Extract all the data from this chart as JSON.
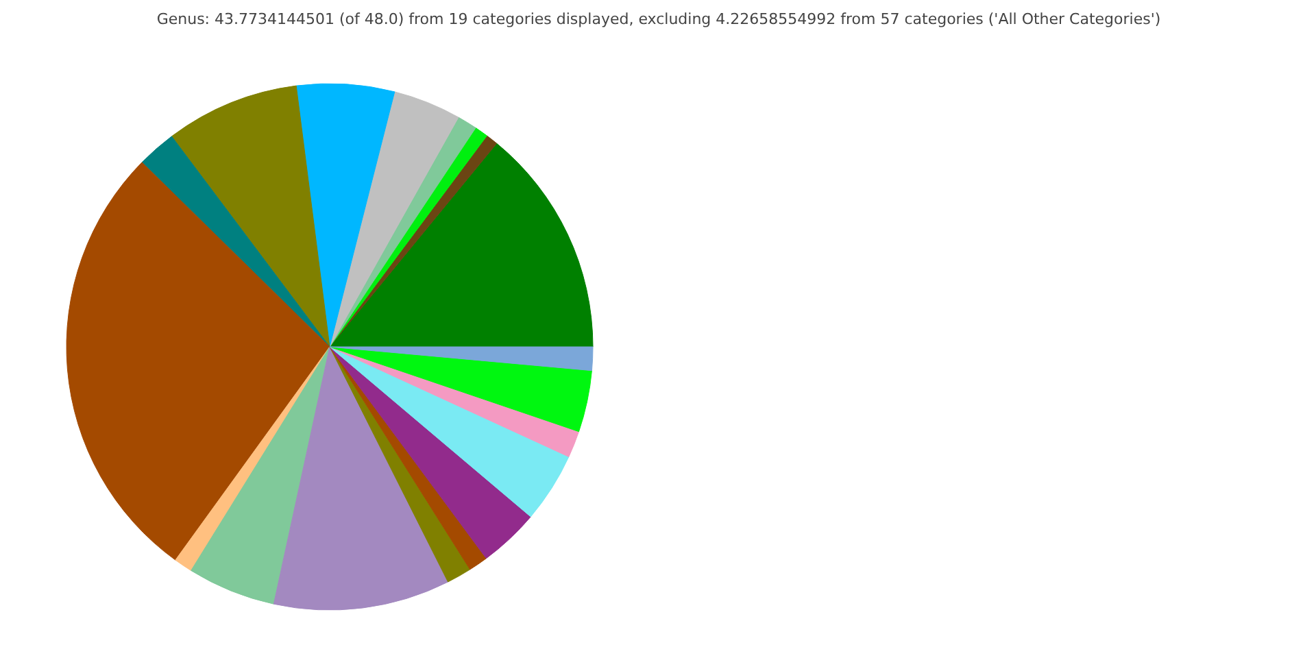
{
  "chart_data": {
    "type": "pie",
    "title": "Genus: 43.7734144501 (of 48.0) from 19 categories displayed, excluding 4.22658554992 from 57 categories ('All Other Categories')",
    "categories": [
      null,
      null,
      null,
      null,
      null,
      null,
      null,
      null,
      null,
      null,
      null,
      null,
      null,
      null,
      null,
      null,
      null,
      null,
      null
    ],
    "values": [
      14.06,
      0.75,
      0.83,
      1.22,
      4.17,
      6.0,
      8.22,
      2.39,
      27.39,
      1.14,
      5.42,
      10.83,
      1.53,
      1.19,
      3.69,
      4.31,
      1.64,
      3.78,
      1.44
    ],
    "colors": [
      "#008000",
      "#6b4513",
      "#00f00f",
      "#80c99a",
      "#c0c0c0",
      "#00b7ff",
      "#808000",
      "#008080",
      "#a44a00",
      "#ffc080",
      "#80c99a",
      "#a389c0",
      "#808000",
      "#a44a00",
      "#922b8c",
      "#7aeaf3",
      "#f49ac2",
      "#00f710",
      "#7ba7d9"
    ]
  }
}
